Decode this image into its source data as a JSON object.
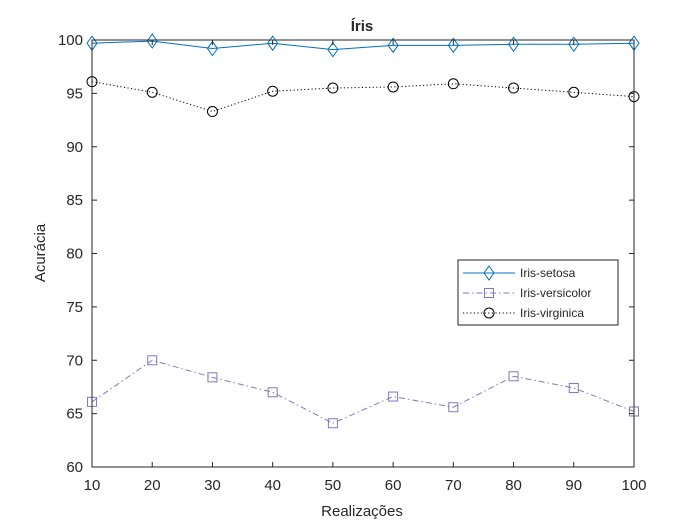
{
  "chart_data": {
    "type": "line",
    "title": "Íris",
    "xlabel": "Realizações",
    "ylabel": "Acurácia",
    "xlim": [
      10,
      100
    ],
    "ylim": [
      60,
      100
    ],
    "x": [
      10,
      20,
      30,
      40,
      50,
      60,
      70,
      80,
      90,
      100
    ],
    "xticks": [
      10,
      20,
      30,
      40,
      50,
      60,
      70,
      80,
      90,
      100
    ],
    "yticks": [
      60,
      65,
      70,
      75,
      80,
      85,
      90,
      95,
      100
    ],
    "grid": false,
    "legend_position": "right-middle",
    "series": [
      {
        "name": "Iris-setosa",
        "color": "#0072BD",
        "line_style": "solid",
        "marker": "diamond",
        "values": [
          99.7,
          99.9,
          99.2,
          99.7,
          99.1,
          99.5,
          99.5,
          99.6,
          99.6,
          99.7
        ]
      },
      {
        "name": "Iris-versicolor",
        "color": "#7E79C0",
        "line_style": "dashdot",
        "marker": "square",
        "values": [
          66.1,
          70.0,
          68.4,
          67.0,
          64.1,
          66.6,
          65.6,
          68.5,
          67.4,
          65.2
        ]
      },
      {
        "name": "Iris-virginica",
        "color": "#000000",
        "line_style": "dotted",
        "marker": "circle",
        "values": [
          96.1,
          95.1,
          93.3,
          95.2,
          95.5,
          95.6,
          95.9,
          95.5,
          95.1,
          94.7
        ]
      }
    ]
  }
}
